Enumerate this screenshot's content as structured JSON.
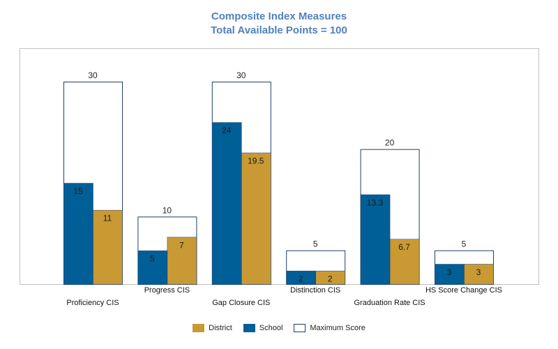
{
  "chart_data": {
    "type": "bar",
    "title": "Composite Index Measures",
    "subtitle": "Total Available Points = 100",
    "categories": [
      "Proficiency CIS",
      "Progress CIS",
      "Gap Closure CIS",
      "Distinction CIS",
      "Graduation Rate CIS",
      "HS Score Change CIS"
    ],
    "series": [
      {
        "name": "District",
        "color": "#c99a34",
        "values": [
          11,
          7,
          19.5,
          2,
          6.7,
          3
        ]
      },
      {
        "name": "School",
        "color": "#005f96",
        "values": [
          15,
          5,
          24,
          2,
          13.3,
          3
        ]
      },
      {
        "name": "Maximum Score",
        "color": "#ffffff",
        "values": [
          30,
          10,
          30,
          5,
          20,
          5
        ]
      }
    ],
    "ylim": [
      0,
      30
    ],
    "grid": false,
    "legend_position": "bottom"
  }
}
